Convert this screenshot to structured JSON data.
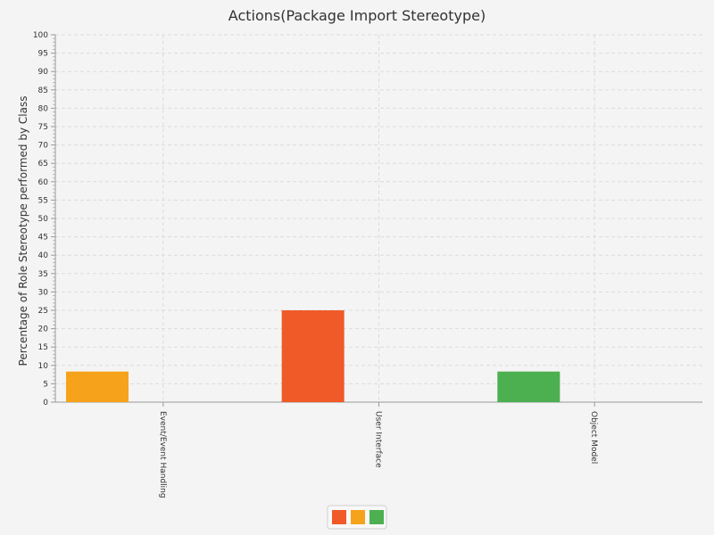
{
  "chart_data": {
    "type": "bar",
    "title": "Actions(Package Import Stereotype)",
    "xlabel": "",
    "ylabel": "Percentage of Role Stereotype performed by Class",
    "ylim": [
      0,
      100
    ],
    "ytick_step": 5,
    "grid": true,
    "legend_position": "bottom-center",
    "categories": [
      "Event/Event Handling",
      "User Interface",
      "Object Model"
    ],
    "series": [
      {
        "name": "",
        "color": "#f05a28",
        "values": [
          0,
          25,
          0
        ]
      },
      {
        "name": "",
        "color": "#f7a21b",
        "values": [
          8.33,
          0,
          0
        ]
      },
      {
        "name": "",
        "color": "#4caf50",
        "values": [
          0,
          0,
          8.33
        ]
      }
    ]
  }
}
